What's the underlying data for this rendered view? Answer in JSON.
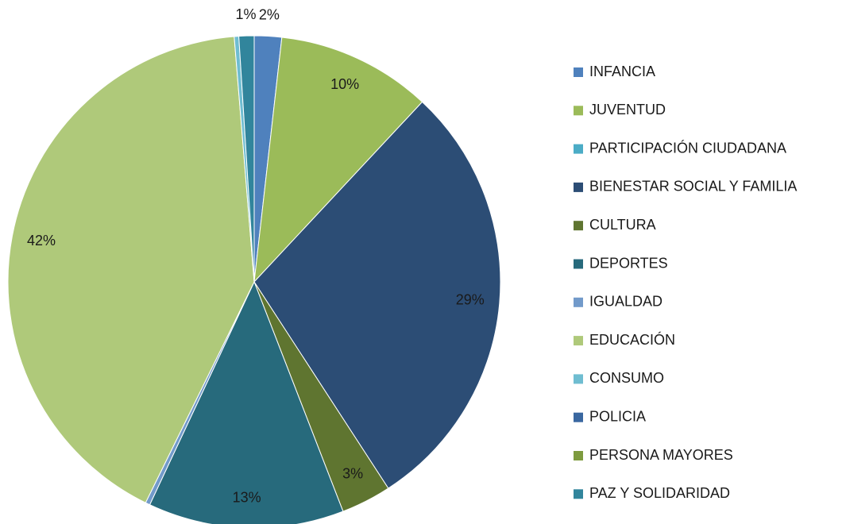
{
  "chart_data": {
    "type": "pie",
    "categories": [
      "INFANCIA",
      "JUVENTUD",
      "PARTICIPACIÓN CIUDADANA",
      "BIENESTAR SOCIAL Y FAMILIA",
      "CULTURA",
      "DEPORTES",
      "IGUALDAD",
      "EDUCACIÓN",
      "CONSUMO",
      "POLICIA",
      "PERSONA MAYORES",
      "PAZ Y SOLIDARIDAD"
    ],
    "values": [
      1.8,
      10.2,
      0,
      29.0,
      3.3,
      12.9,
      0.3,
      41.6,
      0.3,
      0,
      0,
      1.0
    ],
    "value_labels": [
      "2%",
      "10%",
      null,
      "29%",
      "3%",
      "13%",
      null,
      "42%",
      null,
      null,
      null,
      "1%"
    ],
    "colors": [
      "#4f81bd",
      "#9bbb59",
      "#4bacc6",
      "#2c4d75",
      "#5f7530",
      "#276a7c",
      "#729aca",
      "#afc97a",
      "#6fbdd1",
      "#3a67a0",
      "#7e9b3f",
      "#31859c"
    ],
    "legend": "right"
  }
}
